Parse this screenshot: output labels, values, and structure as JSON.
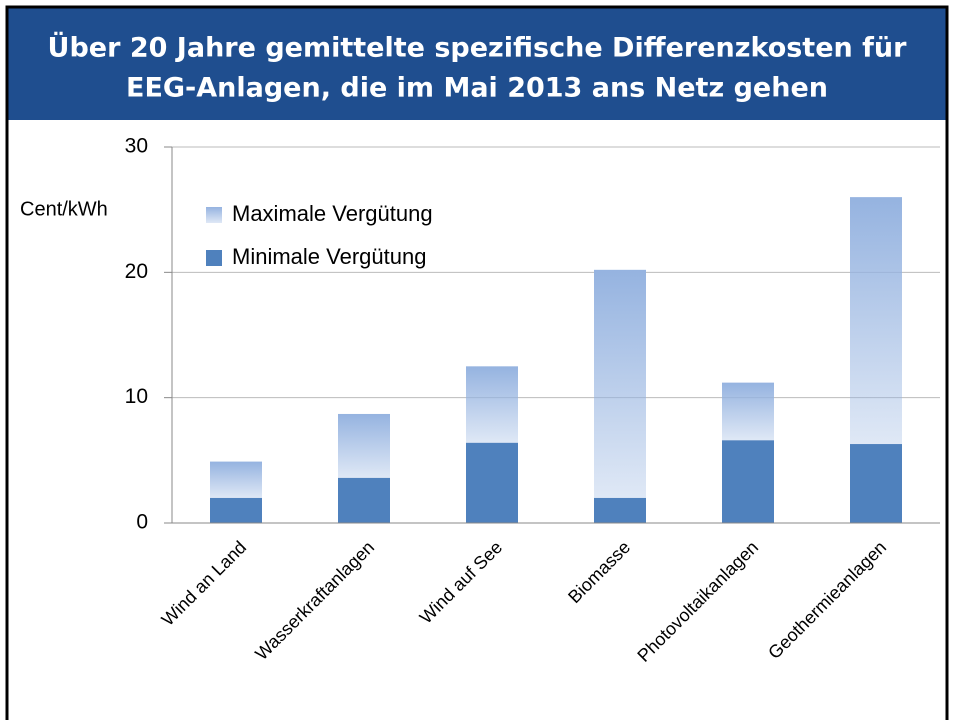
{
  "chart_data": {
    "type": "stacked_bar",
    "title": [
      "Über 20 Jahre gemittelte spezifische Differenzkosten für",
      "EEG-Anlagen, die im Mai 2013 ans Netz gehen"
    ],
    "y_label": "Cent/kWh",
    "categories": [
      "Wind an Land",
      "Wasserkraftanlagen",
      "Wind auf See",
      "Biomasse",
      "Photovoltaikanlagen",
      "Geothermieanlagen"
    ],
    "series": [
      {
        "name": "Minimale Vergütung",
        "color": "#4f81bd",
        "values": [
          2.0,
          3.6,
          6.4,
          2.0,
          6.6,
          6.3
        ]
      },
      {
        "name": "Maximale Vergütung",
        "color": "#95b3e0",
        "values": [
          2.9,
          5.1,
          6.1,
          18.2,
          4.6,
          19.7
        ]
      }
    ],
    "ylim": [
      0,
      30
    ],
    "yticks": [
      0,
      10,
      20,
      30
    ],
    "grid": true,
    "legend": "top-left"
  }
}
